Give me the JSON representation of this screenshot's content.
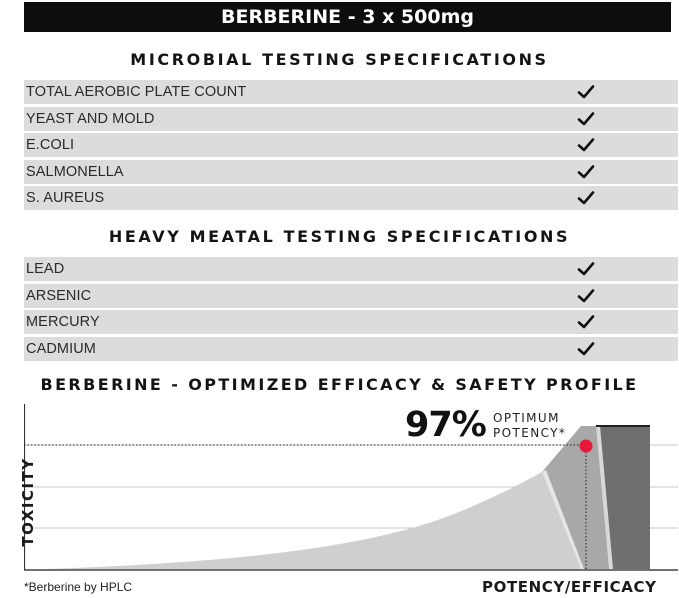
{
  "banner": {
    "title": "BERBERINE - 3 x 500mg"
  },
  "microbial": {
    "title": "MICROBIAL TESTING SPECIFICATIONS",
    "rows": [
      "TOTAL AEROBIC PLATE COUNT",
      "YEAST AND MOLD",
      "E.COLI",
      "SALMONELLA",
      "S. AUREUS"
    ]
  },
  "heavy_metal": {
    "title": "HEAVY MEATAL TESTING SPECIFICATIONS",
    "rows": [
      "LEAD",
      "ARSENIC",
      "MERCURY",
      "CADMIUM"
    ]
  },
  "profile": {
    "title": "BERBERINE - OPTIMIZED EFFICACY & SAFETY PROFILE",
    "potency_value": "97%",
    "potency_label_line1": "OPTIMUM",
    "potency_label_line2": "POTENCY*",
    "y_axis": "TOXICITY",
    "x_axis": "POTENCY/EFFICACY",
    "footnote": "*Berberine by HPLC",
    "marker_color": "#e8173c"
  },
  "icons": {
    "check": "check-icon"
  }
}
